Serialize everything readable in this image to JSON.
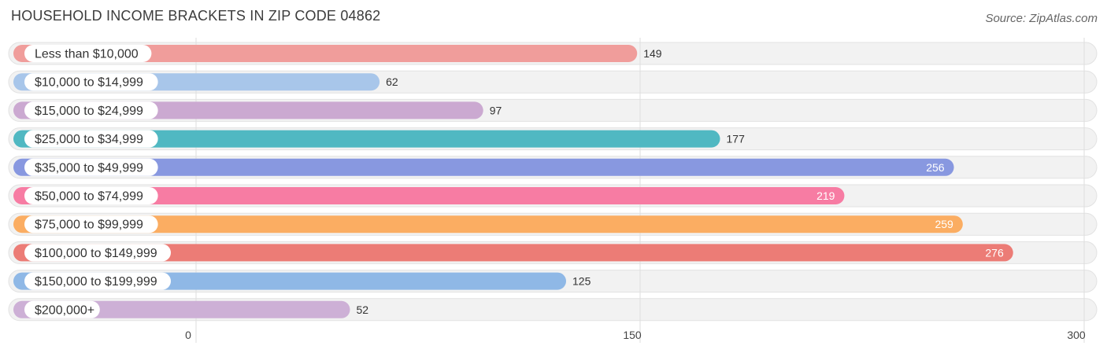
{
  "header": {
    "title": "HOUSEHOLD INCOME BRACKETS IN ZIP CODE 04862",
    "source": "Source: ZipAtlas.com"
  },
  "chart_data": {
    "type": "bar",
    "orientation": "horizontal",
    "title": "HOUSEHOLD INCOME BRACKETS IN ZIP CODE 04862",
    "xlabel": "",
    "ylabel": "",
    "xlim": [
      0,
      300
    ],
    "ticks": [
      0,
      150,
      300
    ],
    "categories": [
      "Less than $10,000",
      "$10,000 to $14,999",
      "$15,000 to $24,999",
      "$25,000 to $34,999",
      "$35,000 to $49,999",
      "$50,000 to $74,999",
      "$75,000 to $99,999",
      "$100,000 to $149,999",
      "$150,000 to $199,999",
      "$200,000+"
    ],
    "values": [
      149,
      62,
      97,
      177,
      256,
      219,
      259,
      276,
      125,
      52
    ],
    "colors": [
      "#f09d9b",
      "#a8c6ea",
      "#cba9d1",
      "#50b8c2",
      "#8898e0",
      "#f77ca3",
      "#fbad62",
      "#ec7c76",
      "#8fb8e6",
      "#cdb0d6"
    ]
  }
}
